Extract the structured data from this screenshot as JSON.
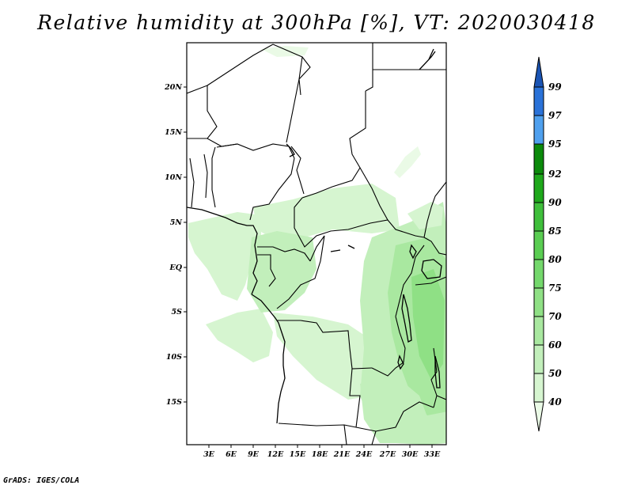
{
  "title": "Relative humidity at 300hPa [%], VT: 2020030418",
  "credit": "GrADS: IGES/COLA",
  "map": {
    "variable": "Relative humidity",
    "level": "300hPa",
    "units": "%",
    "valid_time": "2020030418",
    "lat_labels": [
      "20N",
      "15N",
      "10N",
      "5N",
      "EQ",
      "5S",
      "10S",
      "15S"
    ],
    "lon_labels": [
      "3E",
      "6E",
      "9E",
      "12E",
      "15E",
      "18E",
      "21E",
      "24E",
      "27E",
      "30E",
      "33E"
    ]
  },
  "colorbar": {
    "levels": [
      "40",
      "50",
      "60",
      "70",
      "75",
      "80",
      "85",
      "90",
      "92",
      "95",
      "97",
      "99"
    ],
    "colors": [
      "#eafae6",
      "#d6f5d0",
      "#c2efbb",
      "#a9e8a0",
      "#8fe085",
      "#74d86c",
      "#5acd52",
      "#3fbf3b",
      "#1ea81b",
      "#0b8a0b",
      "#4fa0ee",
      "#2a72d8",
      "#1a54b4"
    ]
  }
}
